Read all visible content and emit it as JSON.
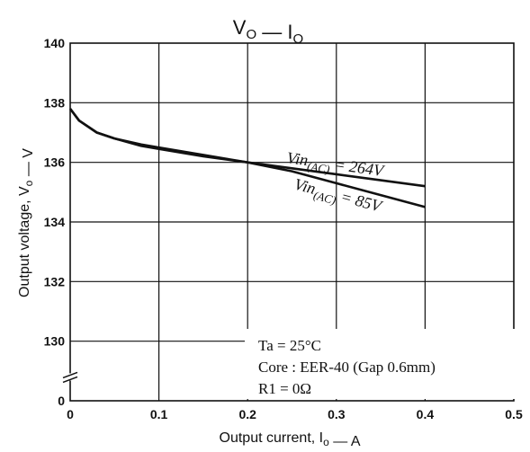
{
  "chart_data": {
    "type": "line",
    "title": "VO — IO",
    "xlabel": "Output current, IO  —  A",
    "ylabel": "Output voltage, VO  —  V",
    "xlim": [
      0,
      0.5
    ],
    "ylim": [
      128,
      140
    ],
    "x_ticks": [
      "0",
      "0.1",
      "0.2",
      "0.3",
      "0.4",
      "0.5"
    ],
    "y_ticks": [
      "0",
      "130",
      "132",
      "134",
      "136",
      "138",
      "140"
    ],
    "axis_break": true,
    "grid": true,
    "series": [
      {
        "name": "Vin(AC) = 264V",
        "x": [
          0,
          0.01,
          0.03,
          0.05,
          0.08,
          0.1,
          0.15,
          0.2,
          0.25,
          0.3,
          0.35,
          0.4
        ],
        "y": [
          137.8,
          137.4,
          137.0,
          136.8,
          136.6,
          136.5,
          136.25,
          136.0,
          135.8,
          135.6,
          135.4,
          135.2
        ]
      },
      {
        "name": "Vin(AC) = 85V",
        "x": [
          0,
          0.01,
          0.03,
          0.05,
          0.08,
          0.1,
          0.15,
          0.2,
          0.25,
          0.3,
          0.35,
          0.4
        ],
        "y": [
          137.8,
          137.4,
          137.0,
          136.8,
          136.55,
          136.45,
          136.2,
          136.0,
          135.7,
          135.3,
          134.9,
          134.5
        ]
      }
    ],
    "annotations": [
      "Ta = 25°C",
      "Core : EER-40 (Gap 0.6mm)",
      "R1 = 0Ω"
    ]
  }
}
